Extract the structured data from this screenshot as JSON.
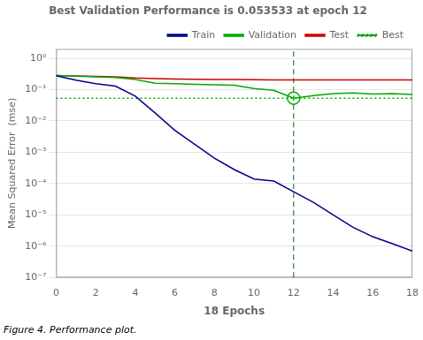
{
  "chart_data": {
    "type": "line",
    "title": "Best Validation Performance is 0.053533 at epoch 12",
    "xlabel": "18 Epochs",
    "ylabel": "Mean Squared Error  (mse)",
    "caption": "Figure 4. Performance plot.",
    "x": [
      0,
      1,
      2,
      3,
      4,
      5,
      6,
      7,
      8,
      9,
      10,
      11,
      12,
      13,
      14,
      15,
      16,
      17,
      18
    ],
    "series": [
      {
        "name": "Train",
        "color": "#00008B",
        "line_style": "solid",
        "values": [
          0.28,
          0.2,
          0.155,
          0.13,
          0.062,
          0.018,
          0.005,
          0.0018,
          0.00065,
          0.00028,
          0.00014,
          0.00012,
          5.5e-05,
          2.5e-05,
          1e-05,
          4e-06,
          2e-06,
          1.2e-06,
          7e-07
        ]
      },
      {
        "name": "Validation",
        "color": "#00aa00",
        "line_style": "solid",
        "values": [
          0.285,
          0.27,
          0.255,
          0.245,
          0.21,
          0.16,
          0.155,
          0.148,
          0.142,
          0.138,
          0.108,
          0.095,
          0.053533,
          0.065,
          0.075,
          0.078,
          0.072,
          0.075,
          0.07
        ]
      },
      {
        "name": "Test",
        "color": "#cc0000",
        "line_style": "solid",
        "values": [
          0.285,
          0.275,
          0.265,
          0.255,
          0.235,
          0.225,
          0.218,
          0.215,
          0.212,
          0.21,
          0.208,
          0.206,
          0.205,
          0.204,
          0.203,
          0.203,
          0.204,
          0.204,
          0.205
        ]
      }
    ],
    "hlines": [
      {
        "name": "Best",
        "value": 0.053533,
        "color": "#00aa00",
        "line_style": "dotted"
      }
    ],
    "vlines": [
      {
        "value": 12,
        "color": "#006600",
        "line_style": "dashed"
      }
    ],
    "markers": [
      {
        "x": 12,
        "y": 0.053533,
        "color": "#00aa00",
        "marker": "circle"
      }
    ],
    "xlim": [
      0,
      18
    ],
    "xticks": [
      0,
      2,
      4,
      6,
      8,
      10,
      12,
      14,
      16,
      18
    ],
    "ylim": [
      1e-07,
      2
    ],
    "yticks": [
      {
        "value": 1e-07,
        "label": "10⁻⁷"
      },
      {
        "value": 1e-06,
        "label": "10⁻⁶"
      },
      {
        "value": 1e-05,
        "label": "10⁻⁵"
      },
      {
        "value": 0.0001,
        "label": "10⁻⁴"
      },
      {
        "value": 0.001,
        "label": "10⁻³"
      },
      {
        "value": 0.01,
        "label": "10⁻²"
      },
      {
        "value": 0.1,
        "label": "10⁻¹"
      },
      {
        "value": 1,
        "label": "10⁰"
      }
    ],
    "log": "y",
    "grid": true,
    "legend": "upper right"
  }
}
